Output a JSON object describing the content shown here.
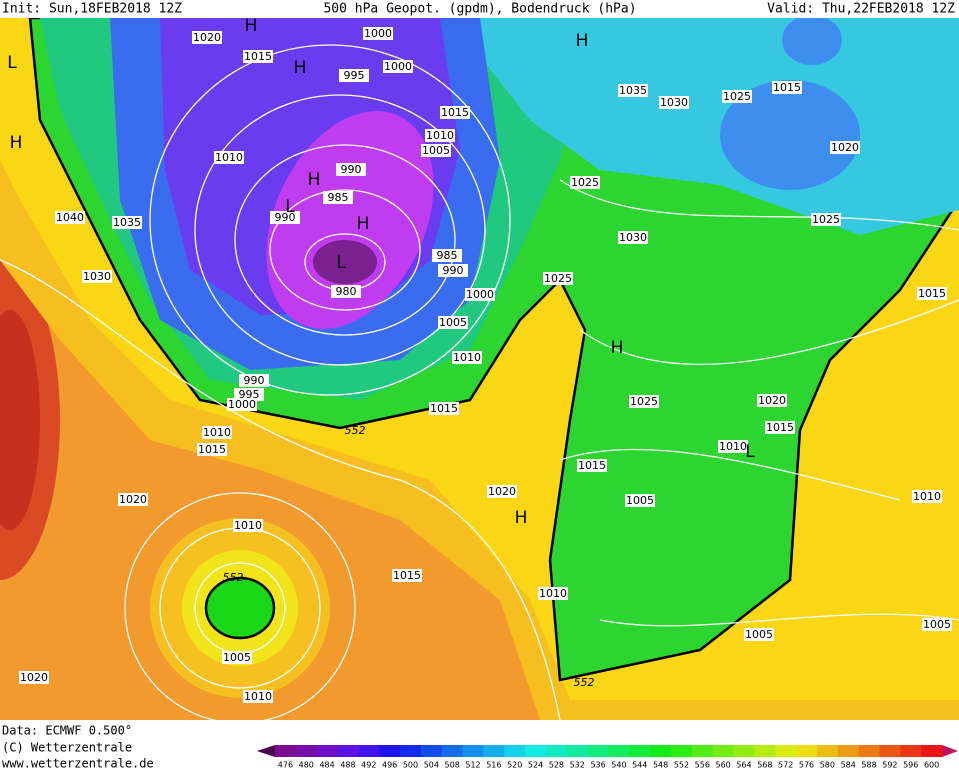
{
  "header": {
    "init": "Init: Sun,18FEB2018 12Z",
    "title": "500 hPa Geopot. (gpdm), Bodendruck (hPa)",
    "valid": "Valid: Thu,22FEB2018 12Z"
  },
  "map": {
    "isobar_labels": [
      1020,
      1015,
      1000,
      995,
      1000,
      1015,
      1010,
      1005,
      1010,
      990,
      985,
      990,
      980,
      985,
      990,
      1000,
      1005,
      1010,
      1040,
      1035,
      1030,
      990,
      995,
      1000,
      1010,
      1015,
      1015,
      1020,
      1010,
      1005,
      1010,
      1020,
      1015,
      1020,
      1010,
      1035,
      1030,
      1025,
      1015,
      1020,
      1025,
      1030,
      1025,
      1025,
      1015,
      1025,
      1020,
      1015,
      1015,
      1010,
      1005,
      1010,
      1005,
      1005
    ],
    "centers": [
      "H",
      "L",
      "H",
      "H",
      "H",
      "L",
      "H",
      "L",
      "H",
      "H",
      "L",
      "H"
    ],
    "contour_labels": [
      552,
      552,
      552
    ]
  },
  "footer": {
    "data": "Data: ECMWF  0.500°",
    "copyright": "(C) Wetterzentrale",
    "url": "www.wetterzentrale.de"
  },
  "colorbar": {
    "ticks": [
      476,
      480,
      484,
      488,
      492,
      496,
      500,
      504,
      508,
      512,
      516,
      520,
      524,
      528,
      532,
      536,
      540,
      544,
      548,
      552,
      556,
      560,
      564,
      568,
      572,
      576,
      580,
      584,
      588,
      592,
      596,
      600
    ]
  }
}
